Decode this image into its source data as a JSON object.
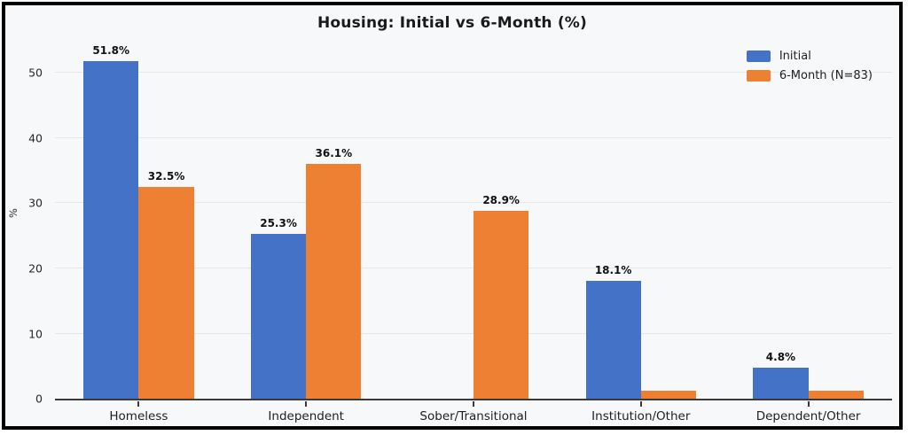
{
  "chart_data": {
    "type": "bar",
    "title": "Housing: Initial vs 6-Month (%)",
    "xlabel": "",
    "ylabel": "%",
    "categories": [
      "Homeless",
      "Independent",
      "Sober/Transitional",
      "Institution/Other",
      "Dependent/Other"
    ],
    "series": [
      {
        "name": "Initial",
        "color": "#4472C6",
        "values": [
          51.8,
          25.3,
          0,
          18.1,
          4.8
        ],
        "labels": [
          "51.8%",
          "25.3%",
          null,
          "18.1%",
          "4.8%"
        ]
      },
      {
        "name": "6-Month (N=83)",
        "color": "#EE8033",
        "values": [
          32.5,
          36.1,
          28.9,
          1.2,
          1.2
        ],
        "labels": [
          "32.5%",
          "36.1%",
          "28.9%",
          null,
          null
        ]
      }
    ],
    "yticks": [
      0,
      10,
      20,
      30,
      40,
      50
    ],
    "ylim": [
      0,
      55.5
    ],
    "grid": "horizontal",
    "legend_position": "top-right"
  },
  "colors": {
    "figure_background": "#f7f8fa",
    "gridline": "#e4e7ec",
    "axis_line": "#3a3a3a",
    "border": "#000000",
    "text": "#1a1a1a"
  }
}
